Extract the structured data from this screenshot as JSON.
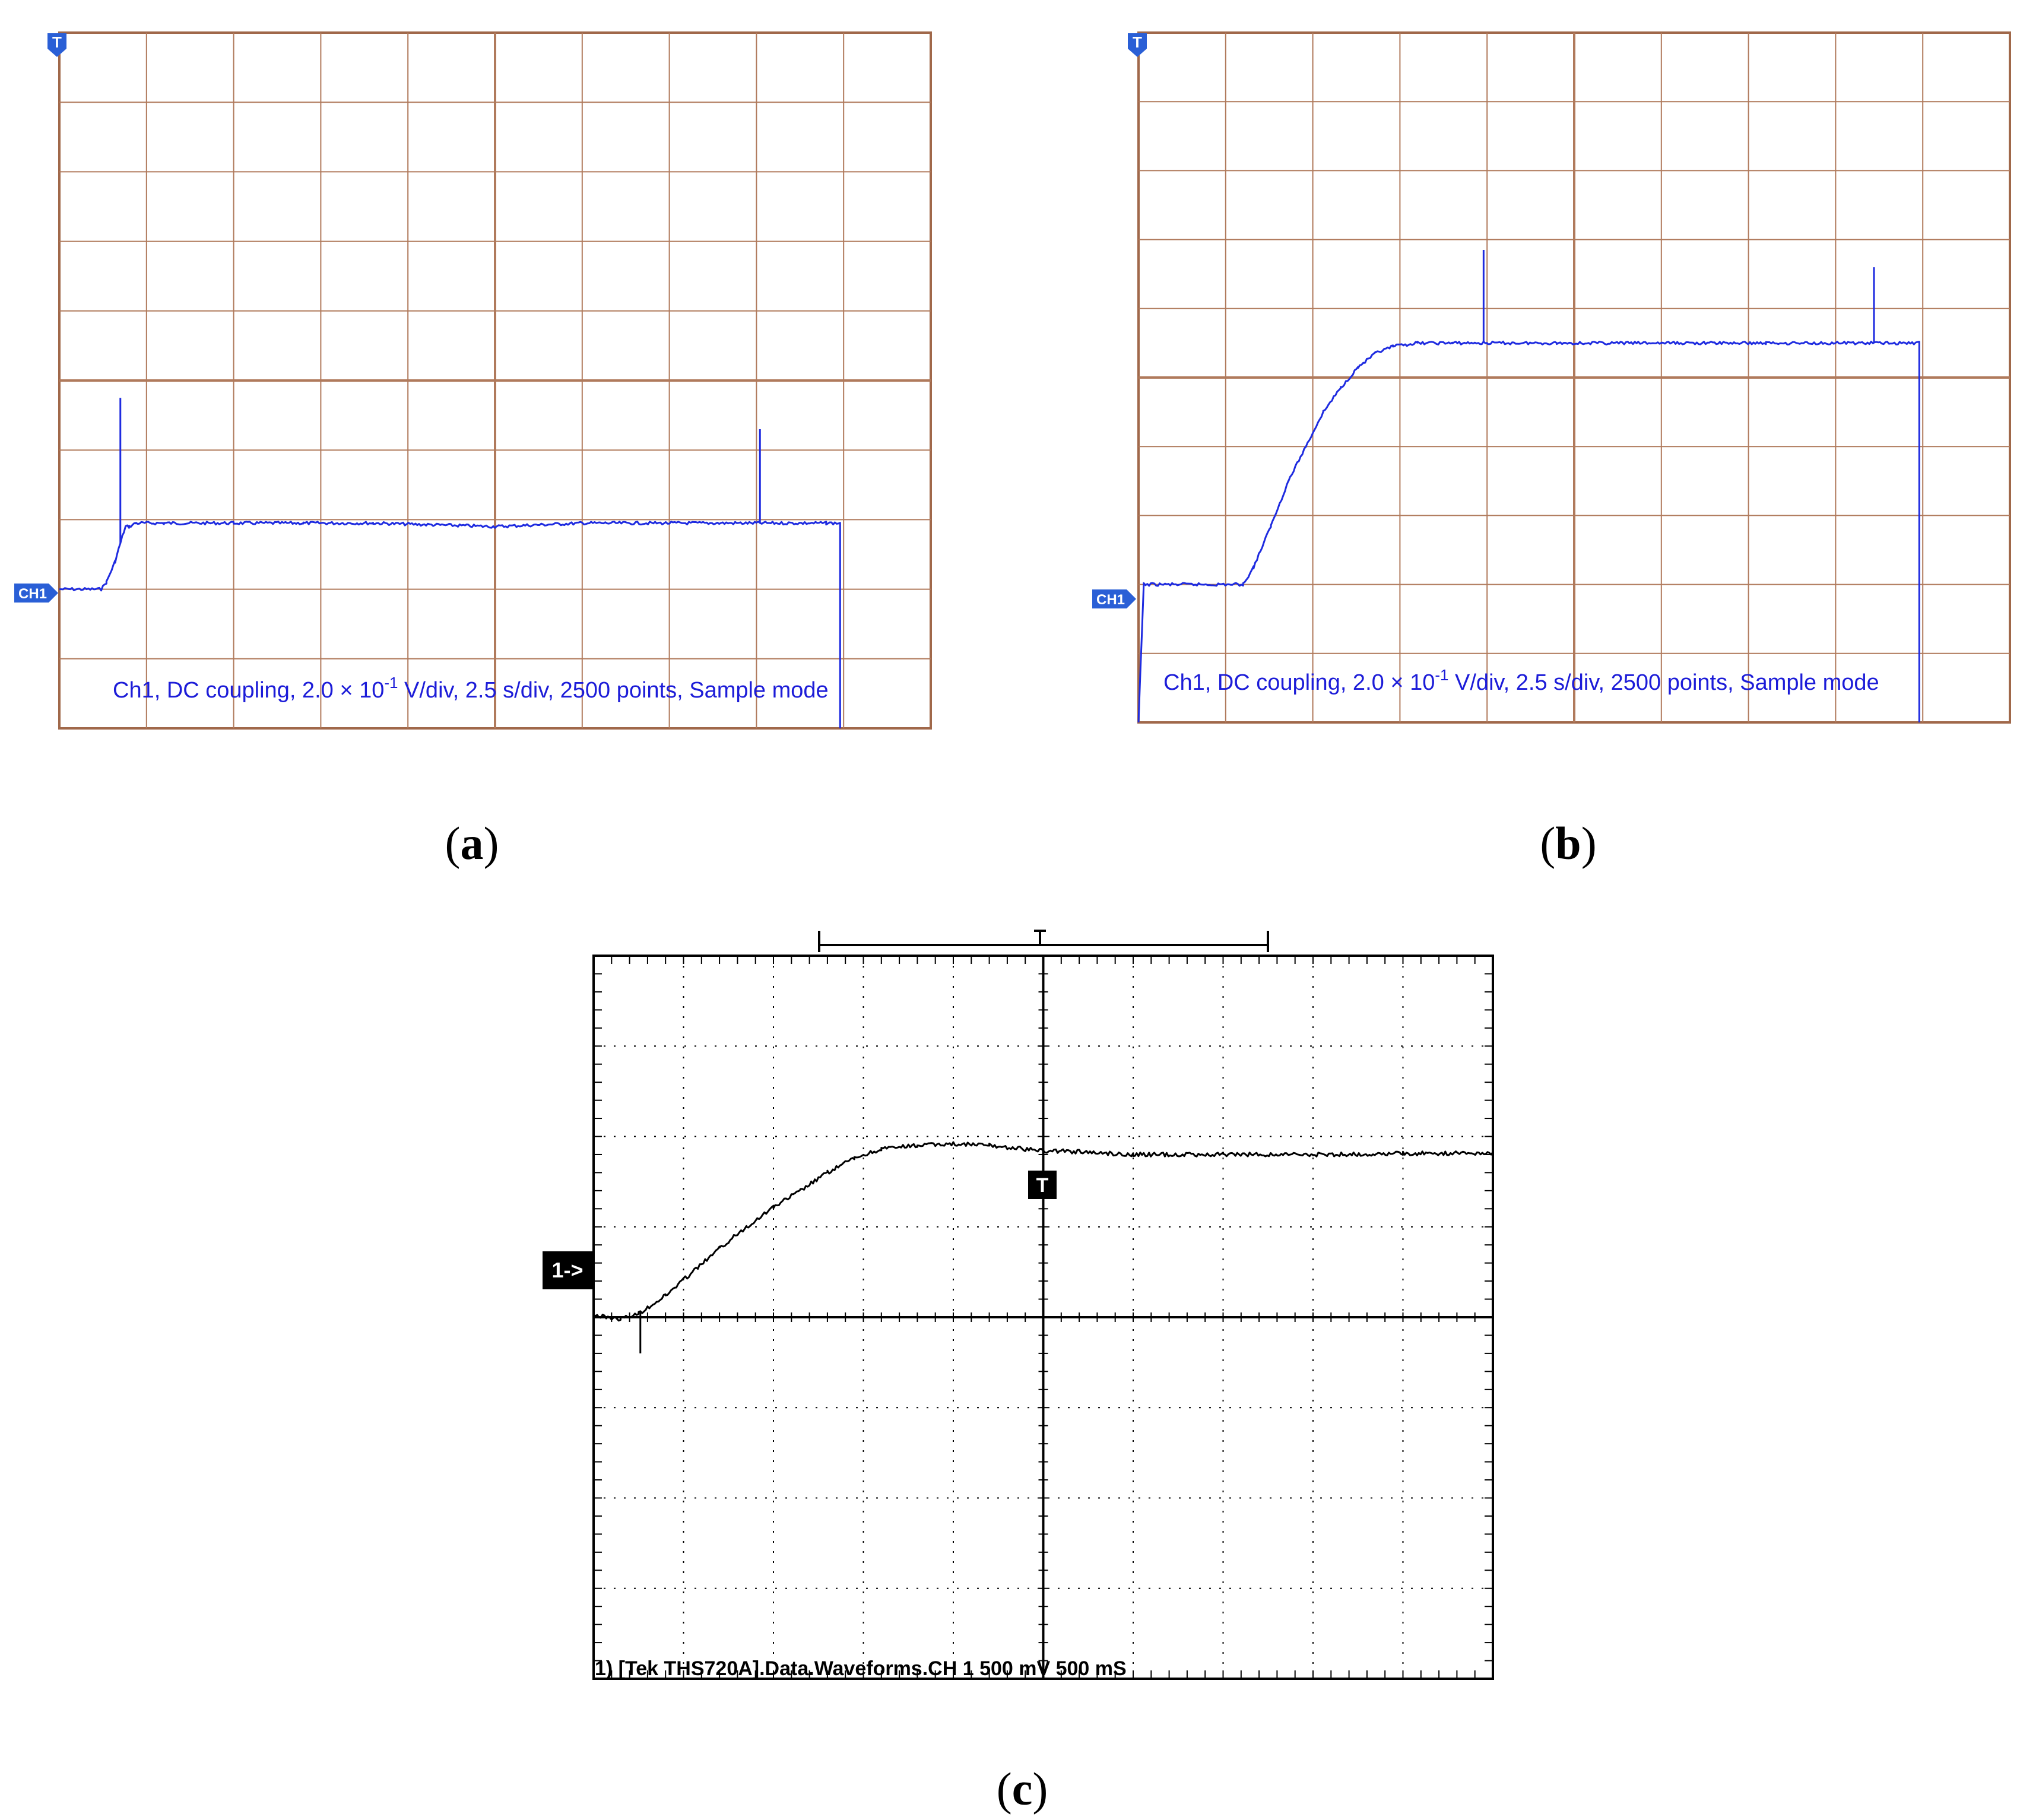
{
  "chart_data": [
    {
      "type": "line",
      "panel_label": "a",
      "annotation": {
        "prefix": "Ch1, DC coupling, 2.0 × 10",
        "superscript": "-1",
        "suffix": " V/div, 2.5 s/div, 2500 points, Sample mode"
      },
      "trigger_marker": "T",
      "channel_marker": "CH1",
      "grid": true,
      "divisions": {
        "x": 10,
        "y": 10
      },
      "xlim": [
        0,
        25
      ],
      "ylim": [
        -1.0,
        1.0
      ],
      "series": [
        {
          "color": "#1e2be0",
          "x": [
            0,
            1.2,
            1.35,
            1.6,
            1.8,
            1.9,
            2.0,
            2.2,
            3.0,
            5.0,
            7.0,
            9.0,
            12.5,
            15.0,
            20.0,
            22.0,
            22.4
          ],
          "y": [
            -0.6,
            -0.6,
            -0.58,
            -0.52,
            -0.45,
            -0.42,
            -0.42,
            -0.41,
            -0.41,
            -0.41,
            -0.41,
            -0.41,
            -0.42,
            -0.41,
            -0.41,
            -0.41,
            -0.41
          ],
          "spikes": [
            {
              "x": 1.75,
              "y": -0.05
            },
            {
              "x": 20.1,
              "y": -0.14
            }
          ],
          "drop_to": -1.0
        }
      ]
    },
    {
      "type": "line",
      "panel_label": "b",
      "annotation": {
        "prefix": "Ch1, DC coupling, 2.0 × 10",
        "superscript": "-1",
        "suffix": " V/div, 2.5 s/div, 2500 points, Sample mode"
      },
      "trigger_marker": "T",
      "channel_marker": "CH1",
      "grid": true,
      "divisions": {
        "x": 10,
        "y": 10
      },
      "xlim": [
        0,
        25
      ],
      "ylim": [
        -1.0,
        1.0
      ],
      "series": [
        {
          "color": "#1e2be0",
          "x": [
            0.0,
            0.15,
            3.0,
            3.3,
            3.8,
            4.3,
            4.8,
            5.3,
            5.8,
            6.3,
            6.8,
            7.3,
            8.0,
            9.0,
            10.0,
            12.0,
            15.0,
            18.0,
            22.4
          ],
          "y": [
            -1.0,
            -0.6,
            -0.6,
            -0.55,
            -0.43,
            -0.3,
            -0.2,
            -0.1,
            -0.03,
            0.03,
            0.07,
            0.09,
            0.1,
            0.1,
            0.1,
            0.1,
            0.1,
            0.1,
            0.1
          ],
          "spikes": [
            {
              "x": 9.9,
              "y": 0.37
            },
            {
              "x": 21.1,
              "y": 0.32
            }
          ],
          "drop_to": -1.0
        }
      ]
    },
    {
      "type": "line",
      "panel_label": "c",
      "annotation": {
        "text": "1) [Tek THS720A].Data.Waveforms.CH 1 500 mV 500 mS"
      },
      "trigger_marker": "T",
      "channel_marker": "1->",
      "grid": true,
      "divisions": {
        "x": 10,
        "y": 8
      },
      "xlim": [
        0,
        5
      ],
      "ylim": [
        -2000,
        2000
      ],
      "series": [
        {
          "color": "#000000",
          "x": [
            0.0,
            0.15,
            0.25,
            0.4,
            0.55,
            0.7,
            0.85,
            1.0,
            1.15,
            1.3,
            1.45,
            1.6,
            1.8,
            2.0,
            2.2,
            2.5,
            2.6,
            3.0,
            3.5,
            4.0,
            4.5,
            5.0
          ],
          "y": [
            10,
            -10,
            20,
            120,
            250,
            380,
            500,
            610,
            700,
            800,
            880,
            930,
            950,
            960,
            950,
            920,
            920,
            900,
            900,
            900,
            905,
            910
          ],
          "spikes": [
            {
              "x": 0.26,
              "y": -200
            }
          ]
        }
      ]
    }
  ]
}
